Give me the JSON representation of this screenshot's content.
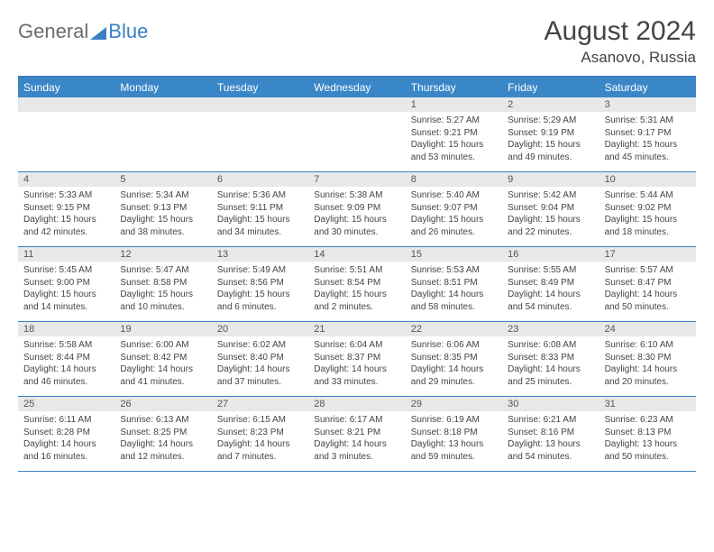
{
  "brand": {
    "part1": "General",
    "part2": "Blue"
  },
  "title": "August 2024",
  "location": "Asanovo, Russia",
  "dayNames": [
    "Sunday",
    "Monday",
    "Tuesday",
    "Wednesday",
    "Thursday",
    "Friday",
    "Saturday"
  ],
  "colors": {
    "headerBg": "#3a87c7",
    "borderBlue": "#3a7fc4",
    "dayNumBg": "#e8e8e8",
    "text": "#444444"
  },
  "weeks": [
    [
      {
        "num": "",
        "sunrise": "",
        "sunset": "",
        "daylight": ""
      },
      {
        "num": "",
        "sunrise": "",
        "sunset": "",
        "daylight": ""
      },
      {
        "num": "",
        "sunrise": "",
        "sunset": "",
        "daylight": ""
      },
      {
        "num": "",
        "sunrise": "",
        "sunset": "",
        "daylight": ""
      },
      {
        "num": "1",
        "sunrise": "Sunrise: 5:27 AM",
        "sunset": "Sunset: 9:21 PM",
        "daylight": "Daylight: 15 hours and 53 minutes."
      },
      {
        "num": "2",
        "sunrise": "Sunrise: 5:29 AM",
        "sunset": "Sunset: 9:19 PM",
        "daylight": "Daylight: 15 hours and 49 minutes."
      },
      {
        "num": "3",
        "sunrise": "Sunrise: 5:31 AM",
        "sunset": "Sunset: 9:17 PM",
        "daylight": "Daylight: 15 hours and 45 minutes."
      }
    ],
    [
      {
        "num": "4",
        "sunrise": "Sunrise: 5:33 AM",
        "sunset": "Sunset: 9:15 PM",
        "daylight": "Daylight: 15 hours and 42 minutes."
      },
      {
        "num": "5",
        "sunrise": "Sunrise: 5:34 AM",
        "sunset": "Sunset: 9:13 PM",
        "daylight": "Daylight: 15 hours and 38 minutes."
      },
      {
        "num": "6",
        "sunrise": "Sunrise: 5:36 AM",
        "sunset": "Sunset: 9:11 PM",
        "daylight": "Daylight: 15 hours and 34 minutes."
      },
      {
        "num": "7",
        "sunrise": "Sunrise: 5:38 AM",
        "sunset": "Sunset: 9:09 PM",
        "daylight": "Daylight: 15 hours and 30 minutes."
      },
      {
        "num": "8",
        "sunrise": "Sunrise: 5:40 AM",
        "sunset": "Sunset: 9:07 PM",
        "daylight": "Daylight: 15 hours and 26 minutes."
      },
      {
        "num": "9",
        "sunrise": "Sunrise: 5:42 AM",
        "sunset": "Sunset: 9:04 PM",
        "daylight": "Daylight: 15 hours and 22 minutes."
      },
      {
        "num": "10",
        "sunrise": "Sunrise: 5:44 AM",
        "sunset": "Sunset: 9:02 PM",
        "daylight": "Daylight: 15 hours and 18 minutes."
      }
    ],
    [
      {
        "num": "11",
        "sunrise": "Sunrise: 5:45 AM",
        "sunset": "Sunset: 9:00 PM",
        "daylight": "Daylight: 15 hours and 14 minutes."
      },
      {
        "num": "12",
        "sunrise": "Sunrise: 5:47 AM",
        "sunset": "Sunset: 8:58 PM",
        "daylight": "Daylight: 15 hours and 10 minutes."
      },
      {
        "num": "13",
        "sunrise": "Sunrise: 5:49 AM",
        "sunset": "Sunset: 8:56 PM",
        "daylight": "Daylight: 15 hours and 6 minutes."
      },
      {
        "num": "14",
        "sunrise": "Sunrise: 5:51 AM",
        "sunset": "Sunset: 8:54 PM",
        "daylight": "Daylight: 15 hours and 2 minutes."
      },
      {
        "num": "15",
        "sunrise": "Sunrise: 5:53 AM",
        "sunset": "Sunset: 8:51 PM",
        "daylight": "Daylight: 14 hours and 58 minutes."
      },
      {
        "num": "16",
        "sunrise": "Sunrise: 5:55 AM",
        "sunset": "Sunset: 8:49 PM",
        "daylight": "Daylight: 14 hours and 54 minutes."
      },
      {
        "num": "17",
        "sunrise": "Sunrise: 5:57 AM",
        "sunset": "Sunset: 8:47 PM",
        "daylight": "Daylight: 14 hours and 50 minutes."
      }
    ],
    [
      {
        "num": "18",
        "sunrise": "Sunrise: 5:58 AM",
        "sunset": "Sunset: 8:44 PM",
        "daylight": "Daylight: 14 hours and 46 minutes."
      },
      {
        "num": "19",
        "sunrise": "Sunrise: 6:00 AM",
        "sunset": "Sunset: 8:42 PM",
        "daylight": "Daylight: 14 hours and 41 minutes."
      },
      {
        "num": "20",
        "sunrise": "Sunrise: 6:02 AM",
        "sunset": "Sunset: 8:40 PM",
        "daylight": "Daylight: 14 hours and 37 minutes."
      },
      {
        "num": "21",
        "sunrise": "Sunrise: 6:04 AM",
        "sunset": "Sunset: 8:37 PM",
        "daylight": "Daylight: 14 hours and 33 minutes."
      },
      {
        "num": "22",
        "sunrise": "Sunrise: 6:06 AM",
        "sunset": "Sunset: 8:35 PM",
        "daylight": "Daylight: 14 hours and 29 minutes."
      },
      {
        "num": "23",
        "sunrise": "Sunrise: 6:08 AM",
        "sunset": "Sunset: 8:33 PM",
        "daylight": "Daylight: 14 hours and 25 minutes."
      },
      {
        "num": "24",
        "sunrise": "Sunrise: 6:10 AM",
        "sunset": "Sunset: 8:30 PM",
        "daylight": "Daylight: 14 hours and 20 minutes."
      }
    ],
    [
      {
        "num": "25",
        "sunrise": "Sunrise: 6:11 AM",
        "sunset": "Sunset: 8:28 PM",
        "daylight": "Daylight: 14 hours and 16 minutes."
      },
      {
        "num": "26",
        "sunrise": "Sunrise: 6:13 AM",
        "sunset": "Sunset: 8:25 PM",
        "daylight": "Daylight: 14 hours and 12 minutes."
      },
      {
        "num": "27",
        "sunrise": "Sunrise: 6:15 AM",
        "sunset": "Sunset: 8:23 PM",
        "daylight": "Daylight: 14 hours and 7 minutes."
      },
      {
        "num": "28",
        "sunrise": "Sunrise: 6:17 AM",
        "sunset": "Sunset: 8:21 PM",
        "daylight": "Daylight: 14 hours and 3 minutes."
      },
      {
        "num": "29",
        "sunrise": "Sunrise: 6:19 AM",
        "sunset": "Sunset: 8:18 PM",
        "daylight": "Daylight: 13 hours and 59 minutes."
      },
      {
        "num": "30",
        "sunrise": "Sunrise: 6:21 AM",
        "sunset": "Sunset: 8:16 PM",
        "daylight": "Daylight: 13 hours and 54 minutes."
      },
      {
        "num": "31",
        "sunrise": "Sunrise: 6:23 AM",
        "sunset": "Sunset: 8:13 PM",
        "daylight": "Daylight: 13 hours and 50 minutes."
      }
    ]
  ]
}
